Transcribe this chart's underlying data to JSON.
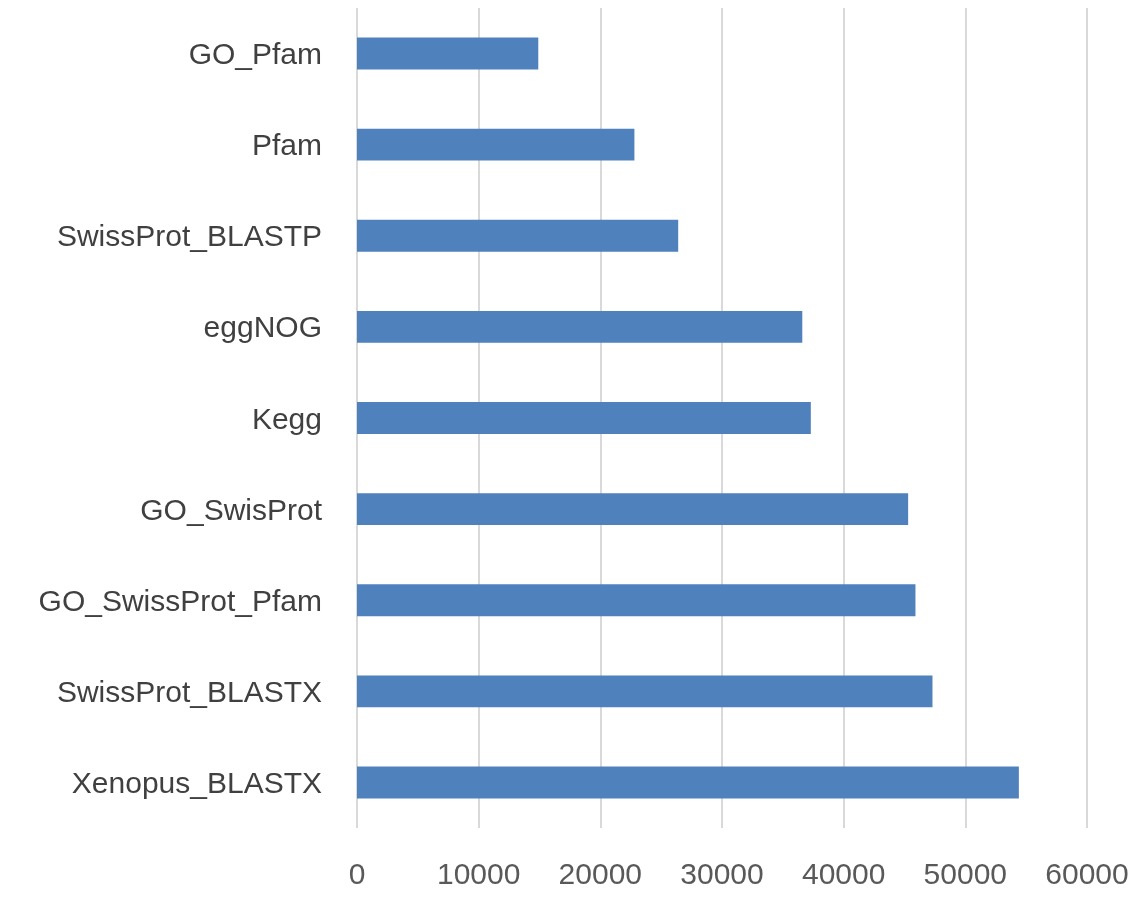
{
  "chart_data": {
    "type": "bar",
    "orientation": "horizontal",
    "categories": [
      "GO_Pfam",
      "Pfam",
      "SwissProt_BLASTP",
      "eggNOG",
      "Kegg",
      "GO_SwisProt",
      "GO_SwissProt_Pfam",
      "SwissProt_BLASTX",
      "Xenopus_BLASTX"
    ],
    "values": [
      14900,
      22800,
      26400,
      36600,
      37300,
      45300,
      45900,
      47300,
      54400
    ],
    "color": "#4f81bd",
    "xlim": [
      0,
      60000
    ],
    "xticks": [
      0,
      10000,
      20000,
      30000,
      40000,
      50000,
      60000
    ],
    "grid": "x"
  }
}
